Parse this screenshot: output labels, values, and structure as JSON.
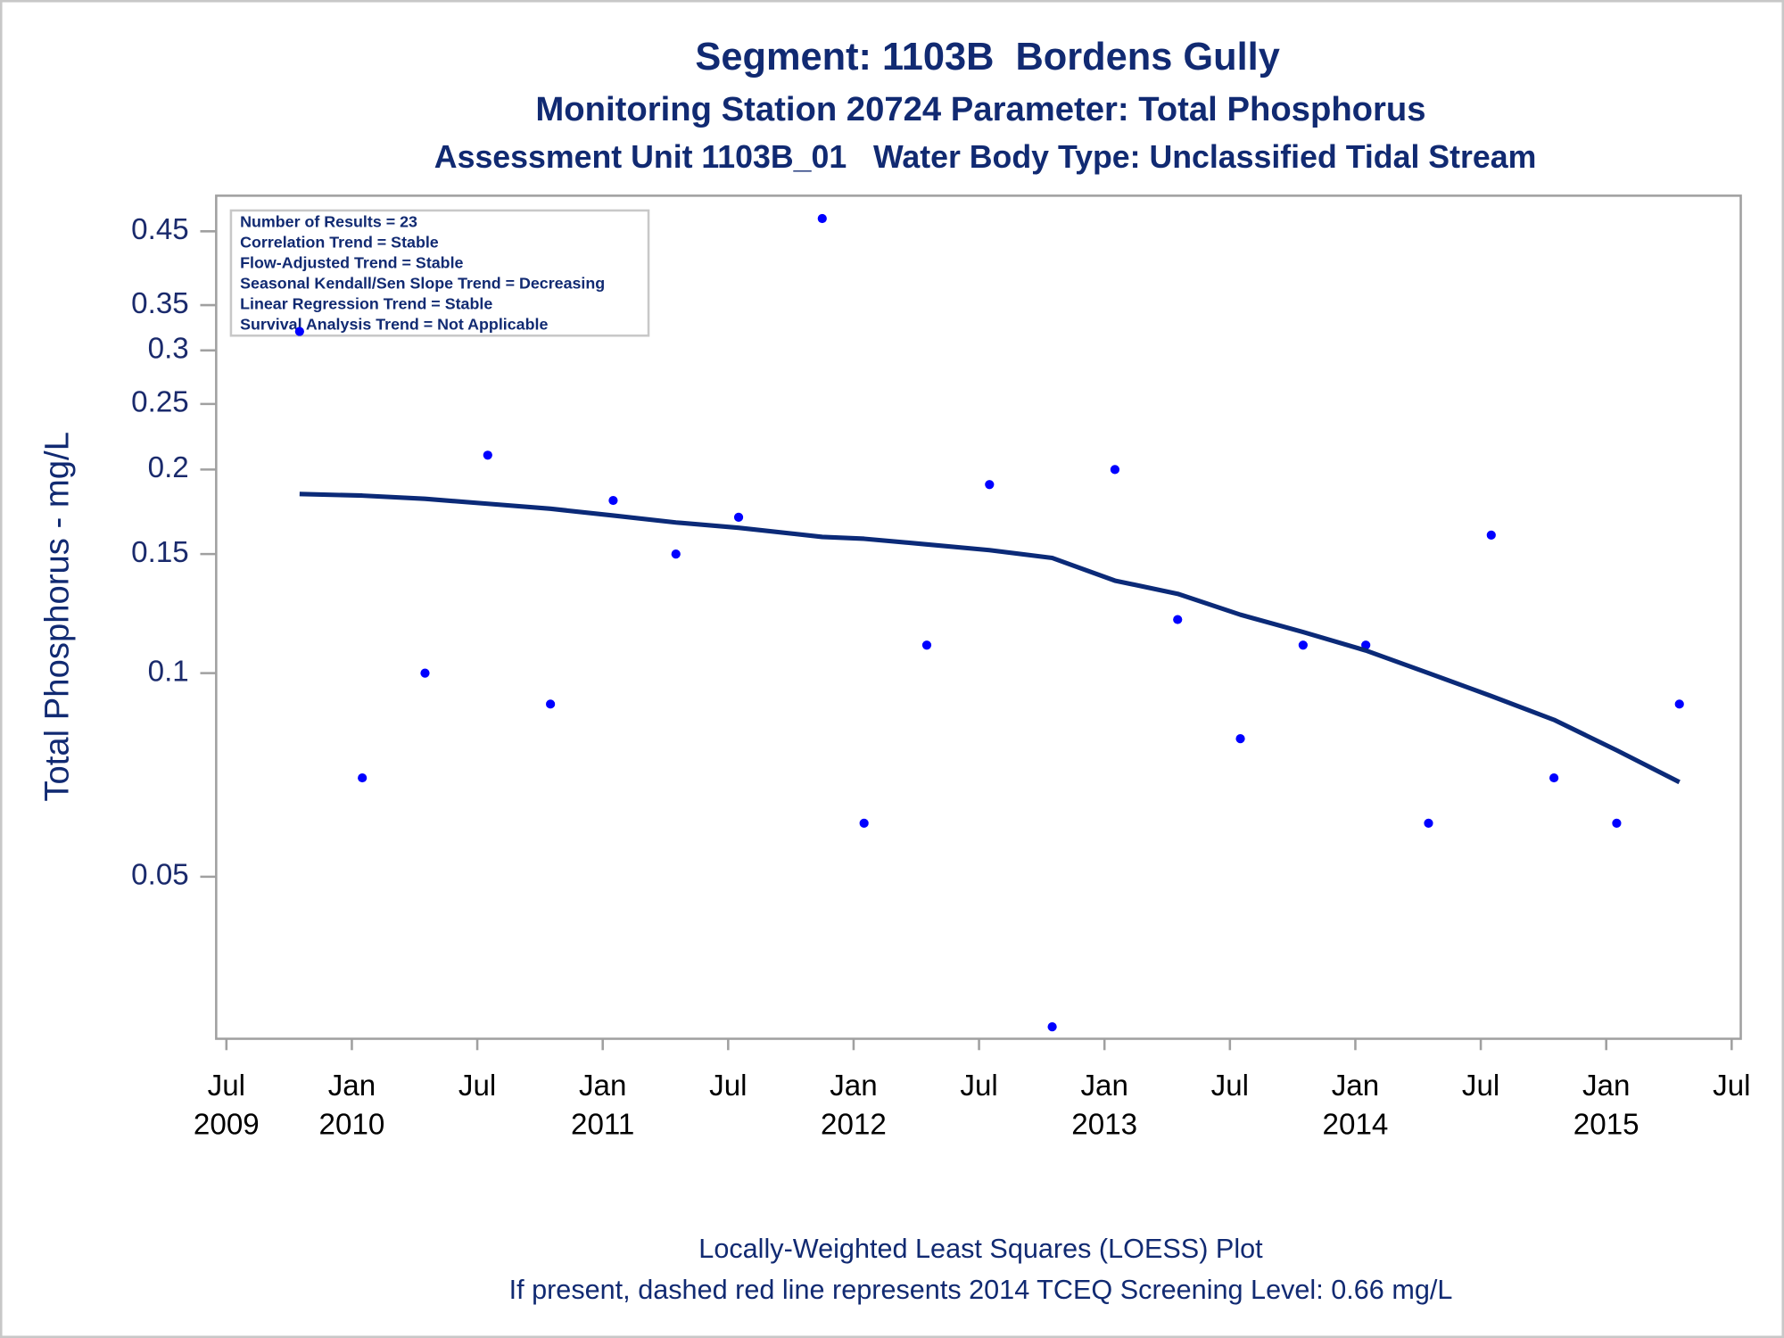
{
  "chart_data": {
    "type": "scatter",
    "title": "Segment: 1103B  Bordens Gully",
    "subtitle": "Monitoring Station 20724 Parameter: Total Phosphorus",
    "subtitle2": "Assessment Unit 1103B_01   Water Body Type: Unclassified Tidal Stream",
    "y_label": "Total Phosphorus - mg/L",
    "annotations": [
      "Number of Results = 23",
      "Correlation Trend = Stable",
      "Flow-Adjusted Trend = Stable",
      "Seasonal Kendall/Sen Slope Trend = Decreasing",
      "Linear Regression Trend = Stable",
      "Survival Analysis Trend = Not Applicable"
    ],
    "footnotes": [
      "Locally-Weighted Least Squares (LOESS) Plot",
      "If present, dashed red line represents 2014 TCEQ Screening Level: 0.66 mg/L"
    ],
    "y_log": true,
    "x": [
      "2009-10",
      "2010-01",
      "2010-04",
      "2010-07",
      "2010-10",
      "2011-01",
      "2011-04",
      "2011-07",
      "2011-11",
      "2012-01",
      "2012-04",
      "2012-07",
      "2012-10",
      "2013-01",
      "2013-04",
      "2013-07",
      "2013-10",
      "2014-01",
      "2014-04",
      "2014-07",
      "2014-10",
      "2015-01",
      "2015-04"
    ],
    "series": [
      {
        "style": "markers",
        "color": "#0000ff",
        "values": [
          0.32,
          0.07,
          0.1,
          0.21,
          0.09,
          0.18,
          0.15,
          0.17,
          0.47,
          0.06,
          0.11,
          0.19,
          0.03,
          0.2,
          0.12,
          0.08,
          0.11,
          0.11,
          0.06,
          0.16,
          0.07,
          0.06,
          0.09
        ]
      },
      {
        "style": "line",
        "color": "#0b2a78",
        "values": [
          0.184,
          0.183,
          0.181,
          0.178,
          0.175,
          0.171,
          0.167,
          0.164,
          0.159,
          0.158,
          0.155,
          0.152,
          0.148,
          0.137,
          0.131,
          0.122,
          0.115,
          0.108,
          0.1,
          0.0925,
          0.0853,
          0.0769,
          0.069
        ]
      }
    ],
    "xlim": [
      "2009-07",
      "2015-07"
    ],
    "xticks": [
      {
        "value": "2009-07",
        "label": [
          "Jul",
          "2009"
        ]
      },
      {
        "value": "2010-01",
        "label": [
          "Jan",
          "2010"
        ]
      },
      {
        "value": "2010-07",
        "label": [
          "Jul"
        ]
      },
      {
        "value": "2011-01",
        "label": [
          "Jan",
          "2011"
        ]
      },
      {
        "value": "2011-07",
        "label": [
          "Jul"
        ]
      },
      {
        "value": "2012-01",
        "label": [
          "Jan",
          "2012"
        ]
      },
      {
        "value": "2012-07",
        "label": [
          "Jul"
        ]
      },
      {
        "value": "2013-01",
        "label": [
          "Jan",
          "2013"
        ]
      },
      {
        "value": "2013-07",
        "label": [
          "Jul"
        ]
      },
      {
        "value": "2014-01",
        "label": [
          "Jan",
          "2014"
        ]
      },
      {
        "value": "2014-07",
        "label": [
          "Jul"
        ]
      },
      {
        "value": "2015-01",
        "label": [
          "Jan",
          "2015"
        ]
      },
      {
        "value": "2015-07",
        "label": [
          "Jul"
        ]
      }
    ],
    "ylim": [
      0.0288,
      0.508
    ],
    "yticks": [
      0.05,
      0.1,
      0.15,
      0.2,
      0.25,
      0.3,
      0.35,
      0.45
    ]
  }
}
